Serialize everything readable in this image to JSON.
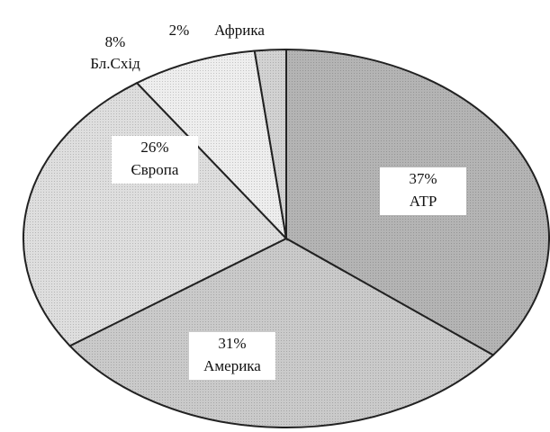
{
  "chart_data": {
    "type": "pie",
    "categories": [
      "АТР",
      "Америка",
      "Європа",
      "Бл.Схід",
      "Африка"
    ],
    "values": [
      37,
      31,
      26,
      8,
      2
    ],
    "value_labels": [
      "37%",
      "31%",
      "26%",
      "8%",
      "2%"
    ],
    "colors": [
      "#b4b4b4",
      "#cacaca",
      "#dedede",
      "#eeeeee",
      "#d2d2d2"
    ]
  }
}
